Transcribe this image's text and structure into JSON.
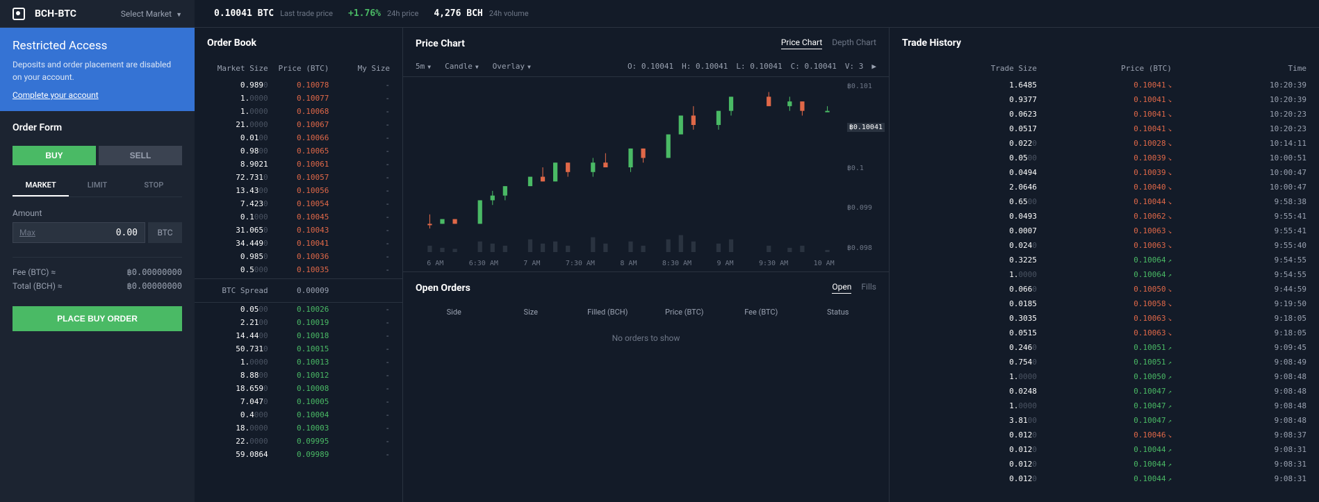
{
  "colors": {
    "bg": "#131b28",
    "panel": "#1c2431",
    "border": "#2a3340",
    "text_dim": "#6e7787",
    "text_mid": "#9aa2b1",
    "green": "#4aba65",
    "red": "#e06848",
    "blue_banner": "#3573d4"
  },
  "topbar": {
    "pair": "BCH-BTC",
    "select_market": "Select Market",
    "last_price": "0.10041  BTC",
    "last_price_label": "Last trade price",
    "change": "+1.76%",
    "change_label": "24h price",
    "volume": "4,276  BCH",
    "volume_label": "24h volume"
  },
  "banner": {
    "title": "Restricted Access",
    "text": "Deposits and order placement are disabled on your account.",
    "link": "Complete your account"
  },
  "order_form": {
    "title": "Order Form",
    "buy": "BUY",
    "sell": "SELL",
    "tabs": [
      "MARKET",
      "LIMIT",
      "STOP"
    ],
    "active_tab": 0,
    "amount_label": "Amount",
    "amount_value": "0.00",
    "amount_unit": "BTC",
    "max_hint": "Max",
    "fee_label": "Fee (BTC) ≈",
    "fee_value": "฿0.00000000",
    "total_label": "Total (BCH) ≈",
    "total_value": "฿0.00000000",
    "submit": "PLACE BUY ORDER"
  },
  "orderbook": {
    "title": "Order Book",
    "cols": [
      "Market Size",
      "Price (BTC)",
      "My Size"
    ],
    "asks": [
      {
        "size": "0.989",
        "dim": "0",
        "price": "0.10078"
      },
      {
        "size": "1.",
        "dim": "0000",
        "price": "0.10077"
      },
      {
        "size": "1.",
        "dim": "0000",
        "price": "0.10068"
      },
      {
        "size": "21.",
        "dim": "0000",
        "price": "0.10067"
      },
      {
        "size": "0.01",
        "dim": "00",
        "price": "0.10066"
      },
      {
        "size": "0.98",
        "dim": "00",
        "price": "0.10065"
      },
      {
        "size": "8.9021",
        "dim": "",
        "price": "0.10061"
      },
      {
        "size": "72.731",
        "dim": "0",
        "price": "0.10057"
      },
      {
        "size": "13.43",
        "dim": "00",
        "price": "0.10056"
      },
      {
        "size": "7.423",
        "dim": "0",
        "price": "0.10054"
      },
      {
        "size": "0.1",
        "dim": "000",
        "price": "0.10045"
      },
      {
        "size": "31.065",
        "dim": "0",
        "price": "0.10043"
      },
      {
        "size": "34.449",
        "dim": "0",
        "price": "0.10041"
      },
      {
        "size": "0.985",
        "dim": "0",
        "price": "0.10036"
      },
      {
        "size": "0.5",
        "dim": "000",
        "price": "0.10035"
      }
    ],
    "spread_label": "BTC Spread",
    "spread_value": "0.00009",
    "bids": [
      {
        "size": "0.05",
        "dim": "00",
        "price": "0.10026"
      },
      {
        "size": "2.21",
        "dim": "00",
        "price": "0.10019"
      },
      {
        "size": "14.44",
        "dim": "00",
        "price": "0.10018"
      },
      {
        "size": "50.731",
        "dim": "0",
        "price": "0.10015"
      },
      {
        "size": "1.",
        "dim": "0000",
        "price": "0.10013"
      },
      {
        "size": "8.88",
        "dim": "00",
        "price": "0.10012"
      },
      {
        "size": "18.659",
        "dim": "0",
        "price": "0.10008"
      },
      {
        "size": "7.047",
        "dim": "0",
        "price": "0.10005"
      },
      {
        "size": "0.4",
        "dim": "000",
        "price": "0.10004"
      },
      {
        "size": "18.",
        "dim": "0000",
        "price": "0.10003"
      },
      {
        "size": "22.",
        "dim": "0000",
        "price": "0.09995"
      },
      {
        "size": "59.0864",
        "dim": "",
        "price": "0.09989"
      }
    ]
  },
  "chart": {
    "title": "Price Chart",
    "view_tabs": [
      "Price Chart",
      "Depth Chart"
    ],
    "active_view": 0,
    "timeframe": "5m",
    "style": "Candle",
    "overlay": "Overlay",
    "ohlc": {
      "o": "0.10041",
      "h": "0.10041",
      "l": "0.10041",
      "c": "0.10041",
      "v": "3"
    },
    "y_ticks": [
      "฿0.101",
      "฿0.10041",
      "฿0.1",
      "฿0.099",
      "฿0.098"
    ],
    "x_ticks": [
      "6 AM",
      "6:30 AM",
      "7 AM",
      "7:30 AM",
      "8 AM",
      "8:30 AM",
      "9 AM",
      "9:30 AM",
      "10 AM"
    ],
    "candles": [
      {
        "x": 0.02,
        "o": 0.098,
        "h": 0.0982,
        "l": 0.0979,
        "c": 0.098,
        "color": "red"
      },
      {
        "x": 0.05,
        "o": 0.098,
        "h": 0.0981,
        "l": 0.098,
        "c": 0.0981,
        "color": "green"
      },
      {
        "x": 0.08,
        "o": 0.0981,
        "h": 0.0981,
        "l": 0.098,
        "c": 0.098,
        "color": "red"
      },
      {
        "x": 0.14,
        "o": 0.098,
        "h": 0.0985,
        "l": 0.098,
        "c": 0.0985,
        "color": "green"
      },
      {
        "x": 0.17,
        "o": 0.0985,
        "h": 0.0987,
        "l": 0.0984,
        "c": 0.0986,
        "color": "green"
      },
      {
        "x": 0.2,
        "o": 0.0986,
        "h": 0.0988,
        "l": 0.0985,
        "c": 0.0988,
        "color": "green"
      },
      {
        "x": 0.26,
        "o": 0.0988,
        "h": 0.099,
        "l": 0.0988,
        "c": 0.099,
        "color": "green"
      },
      {
        "x": 0.29,
        "o": 0.099,
        "h": 0.0992,
        "l": 0.0989,
        "c": 0.0989,
        "color": "red"
      },
      {
        "x": 0.32,
        "o": 0.0989,
        "h": 0.0993,
        "l": 0.0989,
        "c": 0.0993,
        "color": "green"
      },
      {
        "x": 0.35,
        "o": 0.0993,
        "h": 0.0993,
        "l": 0.099,
        "c": 0.0991,
        "color": "red"
      },
      {
        "x": 0.41,
        "o": 0.0991,
        "h": 0.0994,
        "l": 0.099,
        "c": 0.0993,
        "color": "green"
      },
      {
        "x": 0.44,
        "o": 0.0993,
        "h": 0.0995,
        "l": 0.0992,
        "c": 0.0992,
        "color": "red"
      },
      {
        "x": 0.5,
        "o": 0.0992,
        "h": 0.0996,
        "l": 0.0991,
        "c": 0.0996,
        "color": "green"
      },
      {
        "x": 0.53,
        "o": 0.0996,
        "h": 0.0996,
        "l": 0.0993,
        "c": 0.0994,
        "color": "red"
      },
      {
        "x": 0.59,
        "o": 0.0994,
        "h": 0.0999,
        "l": 0.0994,
        "c": 0.0999,
        "color": "green"
      },
      {
        "x": 0.62,
        "o": 0.0999,
        "h": 0.1003,
        "l": 0.0999,
        "c": 0.1003,
        "color": "green"
      },
      {
        "x": 0.65,
        "o": 0.1003,
        "h": 0.1005,
        "l": 0.1,
        "c": 0.1001,
        "color": "red"
      },
      {
        "x": 0.71,
        "o": 0.1001,
        "h": 0.1004,
        "l": 0.1,
        "c": 0.1004,
        "color": "green"
      },
      {
        "x": 0.74,
        "o": 0.1004,
        "h": 0.1007,
        "l": 0.1003,
        "c": 0.1007,
        "color": "green"
      },
      {
        "x": 0.83,
        "o": 0.1007,
        "h": 0.1008,
        "l": 0.1005,
        "c": 0.1005,
        "color": "red"
      },
      {
        "x": 0.88,
        "o": 0.1005,
        "h": 0.1007,
        "l": 0.1004,
        "c": 0.1006,
        "color": "green"
      },
      {
        "x": 0.91,
        "o": 0.1006,
        "h": 0.1006,
        "l": 0.1003,
        "c": 0.1004,
        "color": "red"
      },
      {
        "x": 0.97,
        "o": 0.1004,
        "h": 0.1005,
        "l": 0.1004,
        "c": 0.1004,
        "color": "green"
      }
    ],
    "volumes": [
      {
        "x": 0.02,
        "v": 0.3
      },
      {
        "x": 0.05,
        "v": 0.2
      },
      {
        "x": 0.08,
        "v": 0.15
      },
      {
        "x": 0.14,
        "v": 0.5
      },
      {
        "x": 0.17,
        "v": 0.4
      },
      {
        "x": 0.2,
        "v": 0.3
      },
      {
        "x": 0.26,
        "v": 0.6
      },
      {
        "x": 0.29,
        "v": 0.4
      },
      {
        "x": 0.32,
        "v": 0.5
      },
      {
        "x": 0.35,
        "v": 0.3
      },
      {
        "x": 0.41,
        "v": 0.7
      },
      {
        "x": 0.44,
        "v": 0.4
      },
      {
        "x": 0.5,
        "v": 0.5
      },
      {
        "x": 0.53,
        "v": 0.3
      },
      {
        "x": 0.59,
        "v": 0.6
      },
      {
        "x": 0.62,
        "v": 0.8
      },
      {
        "x": 0.65,
        "v": 0.5
      },
      {
        "x": 0.71,
        "v": 0.4
      },
      {
        "x": 0.74,
        "v": 0.6
      },
      {
        "x": 0.83,
        "v": 0.3
      },
      {
        "x": 0.88,
        "v": 0.2
      },
      {
        "x": 0.91,
        "v": 0.3
      },
      {
        "x": 0.97,
        "v": 0.1
      }
    ],
    "price_range": [
      0.098,
      0.101
    ]
  },
  "open_orders": {
    "title": "Open Orders",
    "tabs": [
      "Open",
      "Fills"
    ],
    "active_tab": 0,
    "cols": [
      "Side",
      "Size",
      "Filled (BCH)",
      "Price (BTC)",
      "Fee (BTC)",
      "Status"
    ],
    "empty": "No orders to show"
  },
  "trade_history": {
    "title": "Trade History",
    "cols": [
      "Trade Size",
      "Price (BTC)",
      "Time"
    ],
    "rows": [
      {
        "size": "1.6485",
        "dim": "",
        "price": "0.10041",
        "dir": "down",
        "time": "10:20:39"
      },
      {
        "size": "0.9377",
        "dim": "",
        "price": "0.10041",
        "dir": "down",
        "time": "10:20:39"
      },
      {
        "size": "0.0623",
        "dim": "",
        "price": "0.10041",
        "dir": "down",
        "time": "10:20:23"
      },
      {
        "size": "0.0517",
        "dim": "",
        "price": "0.10041",
        "dir": "down",
        "time": "10:20:23"
      },
      {
        "size": "0.022",
        "dim": "0",
        "price": "0.10028",
        "dir": "down",
        "time": "10:14:11"
      },
      {
        "size": "0.05",
        "dim": "00",
        "price": "0.10039",
        "dir": "down",
        "time": "10:00:51"
      },
      {
        "size": "0.0494",
        "dim": "",
        "price": "0.10039",
        "dir": "down",
        "time": "10:00:47"
      },
      {
        "size": "2.0646",
        "dim": "",
        "price": "0.10040",
        "dir": "down",
        "time": "10:00:47"
      },
      {
        "size": "0.65",
        "dim": "00",
        "price": "0.10044",
        "dir": "down",
        "time": "9:58:38"
      },
      {
        "size": "0.0493",
        "dim": "",
        "price": "0.10062",
        "dir": "down",
        "time": "9:55:41"
      },
      {
        "size": "0.0007",
        "dim": "",
        "price": "0.10063",
        "dir": "down",
        "time": "9:55:41"
      },
      {
        "size": "0.024",
        "dim": "0",
        "price": "0.10063",
        "dir": "down",
        "time": "9:55:40"
      },
      {
        "size": "0.3225",
        "dim": "",
        "price": "0.10064",
        "dir": "up",
        "time": "9:54:55"
      },
      {
        "size": "1.",
        "dim": "0000",
        "price": "0.10064",
        "dir": "up",
        "time": "9:54:55"
      },
      {
        "size": "0.066",
        "dim": "0",
        "price": "0.10050",
        "dir": "down",
        "time": "9:44:59"
      },
      {
        "size": "0.0185",
        "dim": "",
        "price": "0.10058",
        "dir": "down",
        "time": "9:19:50"
      },
      {
        "size": "0.3035",
        "dim": "",
        "price": "0.10063",
        "dir": "down",
        "time": "9:18:05"
      },
      {
        "size": "0.0515",
        "dim": "",
        "price": "0.10063",
        "dir": "down",
        "time": "9:18:05"
      },
      {
        "size": "0.246",
        "dim": "0",
        "price": "0.10051",
        "dir": "up",
        "time": "9:09:45"
      },
      {
        "size": "0.754",
        "dim": "0",
        "price": "0.10051",
        "dir": "up",
        "time": "9:08:49"
      },
      {
        "size": "1.",
        "dim": "0000",
        "price": "0.10050",
        "dir": "up",
        "time": "9:08:48"
      },
      {
        "size": "0.0248",
        "dim": "",
        "price": "0.10047",
        "dir": "up",
        "time": "9:08:48"
      },
      {
        "size": "1.",
        "dim": "0000",
        "price": "0.10047",
        "dir": "up",
        "time": "9:08:48"
      },
      {
        "size": "3.81",
        "dim": "00",
        "price": "0.10047",
        "dir": "up",
        "time": "9:08:48"
      },
      {
        "size": "0.012",
        "dim": "0",
        "price": "0.10046",
        "dir": "down",
        "time": "9:08:37"
      },
      {
        "size": "0.012",
        "dim": "0",
        "price": "0.10044",
        "dir": "up",
        "time": "9:08:31"
      },
      {
        "size": "0.012",
        "dim": "0",
        "price": "0.10044",
        "dir": "up",
        "time": "9:08:31"
      },
      {
        "size": "0.012",
        "dim": "0",
        "price": "0.10044",
        "dir": "up",
        "time": "9:08:31"
      }
    ]
  }
}
